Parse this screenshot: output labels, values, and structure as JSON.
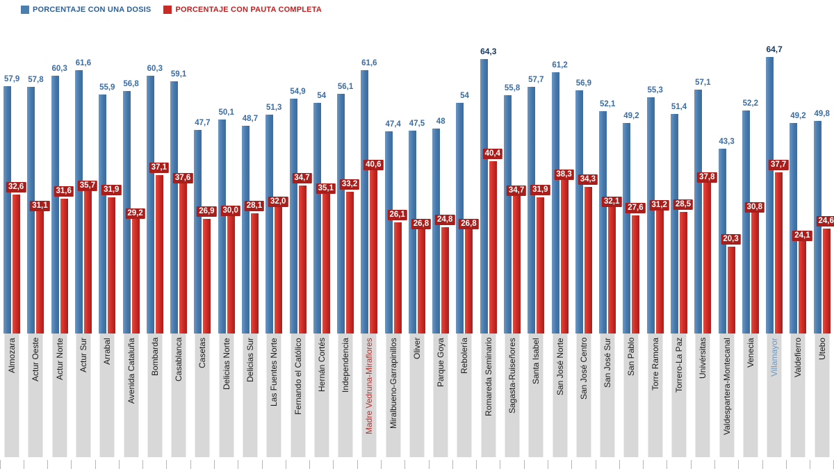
{
  "legend": [
    {
      "label": "PORCENTAJE CON UNA DOSIS",
      "swatch_color": "#4a7fb0",
      "text_color": "#2d6097"
    },
    {
      "label": "PORCENTAJE CON PAUTA COMPLETA",
      "swatch_color": "#cb2a24",
      "text_color": "#c11f1f"
    }
  ],
  "chart_data": {
    "type": "bar",
    "title": "",
    "xlabel": "",
    "ylabel": "",
    "ylim": [
      0,
      70
    ],
    "grid": false,
    "legend_position": "top-left",
    "categories": [
      "Almozara",
      "Actur Oeste",
      "Actur Norte",
      "Actur Sur",
      "Arrabal",
      "Avenida Cataluña",
      "Bombarda",
      "Casablanca",
      "Casetas",
      "Delicias Norte",
      "Delicias Sur",
      "Las Fuentes Norte",
      "Fernando el Católico",
      "Hernán Cortés",
      "Independencia",
      "Madre Vedruna-Miraflores",
      "Miralbueno-Garrapinillos",
      "Oliver",
      "Parque Goya",
      "Rebolería",
      "Romareda Seminario",
      "Sagasta-Ruiseñores",
      "Santa Isabel",
      "San José Norte",
      "San José Centro",
      "San José Sur",
      "San Pablo",
      "Torre Ramona",
      "Torrero-La Paz",
      "Univérsitas",
      "Valdespartera-Montecanal",
      "Venecia",
      "Villamayor",
      "Valdefierro",
      "Utebo"
    ],
    "series": [
      {
        "name": "Porcentaje con una dosis",
        "color": "#4a7fb0",
        "values": [
          57.9,
          57.8,
          60.3,
          61.6,
          55.9,
          56.8,
          60.3,
          59.1,
          47.7,
          50.1,
          48.7,
          51.3,
          54.9,
          54,
          56.1,
          61.6,
          47.4,
          47.5,
          48,
          54,
          64.3,
          55.8,
          57.7,
          61.2,
          56.9,
          52.1,
          49.2,
          55.3,
          51.4,
          57.1,
          43.3,
          52.2,
          64.7,
          49.2,
          49.8
        ],
        "labels": [
          "57,9",
          "57,8",
          "60,3",
          "61,6",
          "55,9",
          "56,8",
          "60,3",
          "59,1",
          "47,7",
          "50,1",
          "48,7",
          "51,3",
          "54,9",
          "54",
          "56,1",
          "61,6",
          "47,4",
          "47,5",
          "48",
          "54",
          "64,3",
          "55,8",
          "57,7",
          "61,2",
          "56,9",
          "52,1",
          "49,2",
          "55,3",
          "51,4",
          "57,1",
          "43,3",
          "52,2",
          "64,7",
          "49,2",
          "49,8"
        ]
      },
      {
        "name": "Porcentaje con pauta completa",
        "color": "#cb2a24",
        "values": [
          32.6,
          31.1,
          31.6,
          35.7,
          31.9,
          29.2,
          37.1,
          37.6,
          26.9,
          30.0,
          28.1,
          32.0,
          34.7,
          35.1,
          33.2,
          40.6,
          26.1,
          26.8,
          24.8,
          26.8,
          40.4,
          34.7,
          31.9,
          38.3,
          34.3,
          32.1,
          27.6,
          31.2,
          28.5,
          37.8,
          20.3,
          30.8,
          37.7,
          24.1,
          24.6
        ],
        "labels": [
          "32,6",
          "31,1",
          "31,6",
          "35,7",
          "31,9",
          "29,2",
          "37,1",
          "37,6",
          "26,9",
          "30,0",
          "28,1",
          "32,0",
          "34,7",
          "35,1",
          "33,2",
          "40,6",
          "26,1",
          "26,8",
          "24,8",
          "26,8",
          "40,4",
          "34,7",
          "31,9",
          "38,3",
          "34,3",
          "32,1",
          "27,6",
          "31,2",
          "28,5",
          "37,8",
          "20,3",
          "30,8",
          "37,7",
          "24,1",
          "24,6"
        ]
      }
    ],
    "highlight_value_indexes": [
      20,
      32
    ],
    "category_label_colors": {
      "15": "#b2332e",
      "32": "#6d9ac4"
    },
    "badge_style": {
      "background": "#a91e1b",
      "text": "#ffffff"
    }
  }
}
